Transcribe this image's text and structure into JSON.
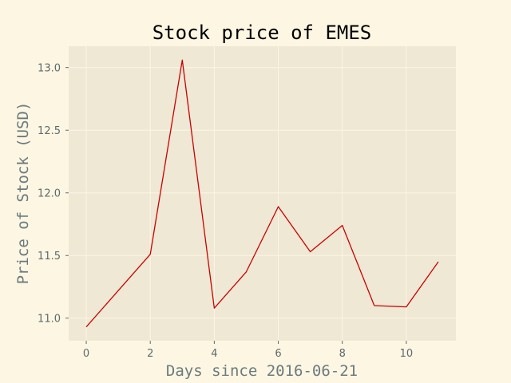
{
  "chart_data": {
    "type": "line",
    "title": "Stock price of EMES",
    "xlabel": "Days since 2016-06-21",
    "ylabel": "Price of Stock (USD)",
    "x": [
      0,
      1,
      2,
      3,
      4,
      5,
      6,
      7,
      8,
      9,
      10,
      11
    ],
    "series": [
      {
        "values": [
          10.93,
          11.22,
          11.51,
          13.06,
          11.08,
          11.37,
          11.89,
          11.53,
          11.74,
          11.1,
          11.09,
          11.45
        ]
      }
    ],
    "xlim": [
      -0.55,
      11.55
    ],
    "ylim": [
      10.82,
      13.17
    ],
    "xticks": [
      0,
      2,
      4,
      6,
      8,
      10
    ],
    "yticks": [
      11.0,
      11.5,
      12.0,
      12.5,
      13.0
    ],
    "xtick_labels": [
      "0",
      "2",
      "4",
      "6",
      "8",
      "10"
    ],
    "ytick_labels": [
      "11.0",
      "11.5",
      "12.0",
      "12.5",
      "13.0"
    ],
    "grid": true,
    "colors": {
      "figure_background": "#fdf6e3",
      "plot_background": "#eee8d5",
      "grid": "#fdf6e3",
      "line": "#cc0000",
      "tick_text": "#5d6b6e",
      "axis_label_text": "#6b7b7e",
      "title_text": "#000000"
    }
  }
}
